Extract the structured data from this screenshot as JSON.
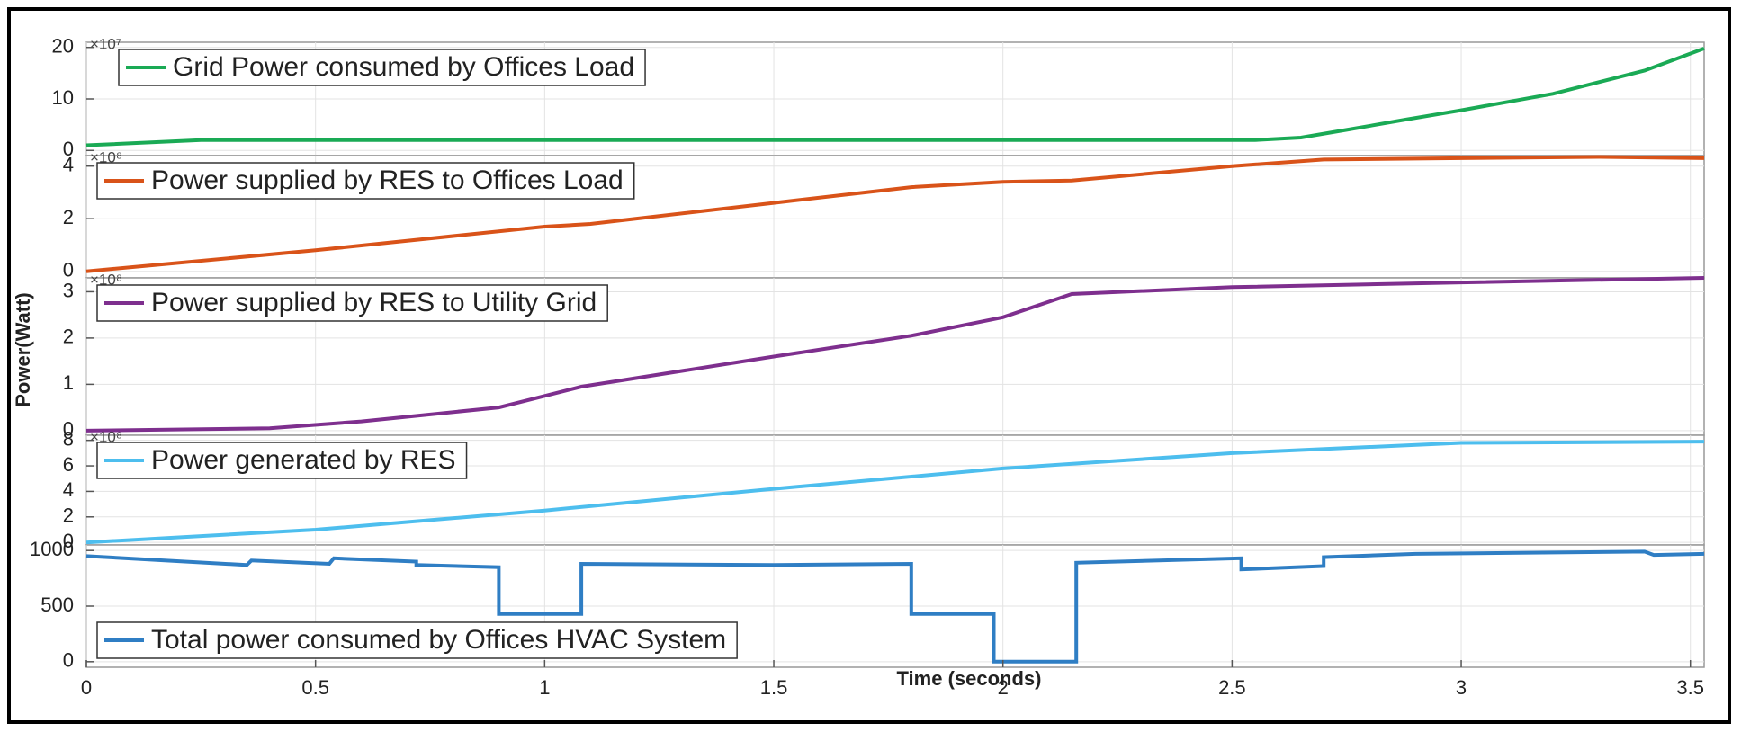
{
  "ylabel": "Power(Watt)",
  "chart_data": [
    {
      "type": "line",
      "exponent_label": "×10⁷",
      "legend": "upper left",
      "ylim": [
        -1,
        21
      ],
      "yticks": [
        0,
        10,
        20
      ],
      "grid": true,
      "x": [
        0,
        0.25,
        1,
        2,
        2.55,
        2.65,
        2.75,
        2.88,
        3.0,
        3.2,
        3.4,
        3.53
      ],
      "series": [
        {
          "name": "Grid Power consumed by Offices Load",
          "color": "#1aaa55",
          "values": [
            1,
            2,
            2,
            2,
            2,
            2.5,
            4,
            6,
            7.8,
            11,
            15.5,
            19.8
          ]
        }
      ]
    },
    {
      "type": "line",
      "exponent_label": "×10⁸",
      "legend": "upper left",
      "ylim": [
        -0.25,
        4.4
      ],
      "yticks": [
        0,
        2,
        4
      ],
      "grid": true,
      "x": [
        0,
        0.5,
        1,
        1.1,
        1.5,
        1.8,
        2.0,
        2.15,
        2.5,
        2.7,
        3.0,
        3.3,
        3.53
      ],
      "series": [
        {
          "name": "Power supplied by RES to Offices Load",
          "color": "#d95319",
          "values": [
            0,
            0.8,
            1.7,
            1.8,
            2.6,
            3.2,
            3.4,
            3.45,
            4.0,
            4.25,
            4.3,
            4.35,
            4.3
          ]
        }
      ]
    },
    {
      "type": "line",
      "exponent_label": "×10⁸",
      "legend": "upper left",
      "ylim": [
        -0.1,
        3.3
      ],
      "yticks": [
        0,
        1,
        2,
        3
      ],
      "grid": true,
      "x": [
        0,
        0.4,
        0.6,
        0.9,
        1.0,
        1.08,
        1.5,
        1.8,
        2.0,
        2.15,
        2.5,
        3.0,
        3.53
      ],
      "series": [
        {
          "name": "Power supplied by RES to Utility Grid",
          "color": "#7e2f8e",
          "values": [
            0,
            0.05,
            0.2,
            0.5,
            0.75,
            0.95,
            1.6,
            2.05,
            2.45,
            2.95,
            3.1,
            3.2,
            3.3
          ]
        }
      ]
    },
    {
      "type": "line",
      "exponent_label": "×10⁸",
      "legend": "upper left",
      "ylim": [
        -0.2,
        8.4
      ],
      "yticks": [
        0,
        2,
        4,
        6,
        8
      ],
      "grid": true,
      "x": [
        0,
        0.5,
        1.0,
        1.5,
        2.0,
        2.5,
        3.0,
        3.53
      ],
      "series": [
        {
          "name": "Power generated by RES",
          "color": "#4dbeee",
          "values": [
            0,
            1.0,
            2.5,
            4.2,
            5.8,
            7.0,
            7.8,
            7.9
          ]
        }
      ]
    },
    {
      "type": "line",
      "legend": "lower left",
      "xlabel": "Time (seconds)",
      "ylim": [
        -50,
        1050
      ],
      "yticks": [
        0,
        500,
        1000
      ],
      "grid": true,
      "xlim": [
        0,
        3.53
      ],
      "xticks": [
        0,
        0.5,
        1,
        1.5,
        2,
        2.5,
        3,
        3.5
      ],
      "x": [
        0,
        0.35,
        0.36,
        0.53,
        0.54,
        0.72,
        0.72,
        0.9,
        0.9,
        1.08,
        1.08,
        1.5,
        1.8,
        1.8,
        1.98,
        1.98,
        2.16,
        2.16,
        2.52,
        2.52,
        2.7,
        2.7,
        2.9,
        3.4,
        3.42,
        3.53
      ],
      "series": [
        {
          "name": "Total power consumed by Offices HVAC System",
          "color": "#2f7ec4",
          "values": [
            950,
            870,
            910,
            880,
            930,
            900,
            870,
            850,
            430,
            430,
            880,
            870,
            880,
            430,
            430,
            0,
            0,
            890,
            930,
            830,
            860,
            940,
            970,
            990,
            960,
            970
          ]
        }
      ]
    }
  ]
}
